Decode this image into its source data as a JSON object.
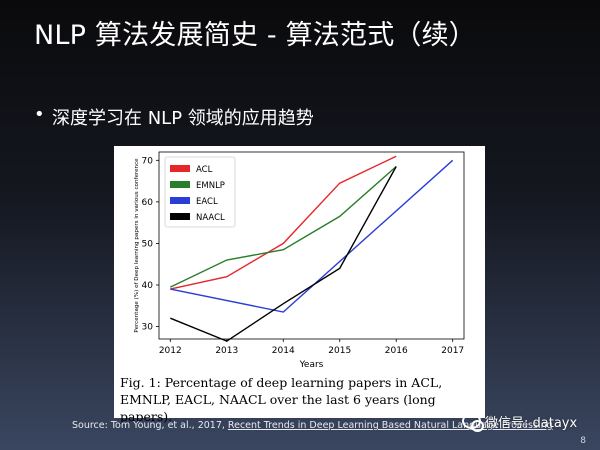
{
  "slide": {
    "title": "NLP 算法发展简史 - 算法范式（续）",
    "bullet": "深度学习在 NLP 领域的应用趋势",
    "caption": "Fig. 1: Percentage of deep learning papers in ACL, EMNLP, EACL, NAACL over the last 6 years (long papers).",
    "source_prefix": "Source: Tom Young, et al., 2017, ",
    "source_link": "Recent Trends in Deep Learning Based Natural Language Processing",
    "page_number": "8",
    "watermark": "微信号: datayx"
  },
  "chart_data": {
    "type": "line",
    "title": "",
    "xlabel": "Years",
    "ylabel": "Percentage (%) of Deep learning papers in various conference",
    "x": [
      2012,
      2013,
      2014,
      2015,
      2016,
      2017
    ],
    "xticks": [
      "2012",
      "2013",
      "2014",
      "2015",
      "2016",
      "2017"
    ],
    "yticks": [
      "30",
      "40",
      "50",
      "60",
      "70"
    ],
    "xlim": [
      2011.8,
      2017.2
    ],
    "ylim": [
      27,
      72
    ],
    "grid": false,
    "legend_position": "top-left",
    "series": [
      {
        "name": "ACL",
        "color": "#e8262a",
        "x": [
          2012,
          2013,
          2014,
          2015,
          2016
        ],
        "y": [
          39,
          42,
          50,
          64.5,
          71
        ]
      },
      {
        "name": "EMNLP",
        "color": "#2a7d2a",
        "x": [
          2012,
          2013,
          2014,
          2015,
          2016
        ],
        "y": [
          39.5,
          46,
          48.5,
          56.5,
          68.5
        ]
      },
      {
        "name": "EACL",
        "color": "#2a3dd6",
        "x": [
          2012,
          2014,
          2017
        ],
        "y": [
          39,
          33.5,
          70
        ]
      },
      {
        "name": "NAACL",
        "color": "#000000",
        "x": [
          2012,
          2013,
          2014,
          2015,
          2016
        ],
        "y": [
          32,
          26.5,
          35.5,
          44,
          68.5
        ]
      }
    ]
  }
}
